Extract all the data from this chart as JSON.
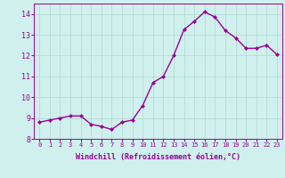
{
  "x": [
    0,
    1,
    2,
    3,
    4,
    5,
    6,
    7,
    8,
    9,
    10,
    11,
    12,
    13,
    14,
    15,
    16,
    17,
    18,
    19,
    20,
    21,
    22,
    23
  ],
  "y": [
    8.8,
    8.9,
    9.0,
    9.1,
    9.1,
    8.7,
    8.6,
    8.45,
    8.8,
    8.9,
    9.6,
    10.7,
    11.0,
    12.0,
    13.25,
    13.65,
    14.1,
    13.85,
    13.2,
    12.85,
    12.35,
    12.35,
    12.5,
    12.05
  ],
  "line_color": "#990099",
  "marker": "D",
  "markersize": 2.0,
  "linewidth": 1.0,
  "bg_color": "#cff0ec",
  "grid_color": "#b0d8d4",
  "xlabel": "Windchill (Refroidissement éolien,°C)",
  "xlabel_color": "#990099",
  "xlim": [
    -0.5,
    23.5
  ],
  "ylim": [
    8.0,
    14.5
  ],
  "yticks": [
    8,
    9,
    10,
    11,
    12,
    13,
    14
  ],
  "xticks": [
    0,
    1,
    2,
    3,
    4,
    5,
    6,
    7,
    8,
    9,
    10,
    11,
    12,
    13,
    14,
    15,
    16,
    17,
    18,
    19,
    20,
    21,
    22,
    23
  ],
  "tick_color": "#990099",
  "tick_fontsize": 5.0,
  "xlabel_fontsize": 6.0
}
